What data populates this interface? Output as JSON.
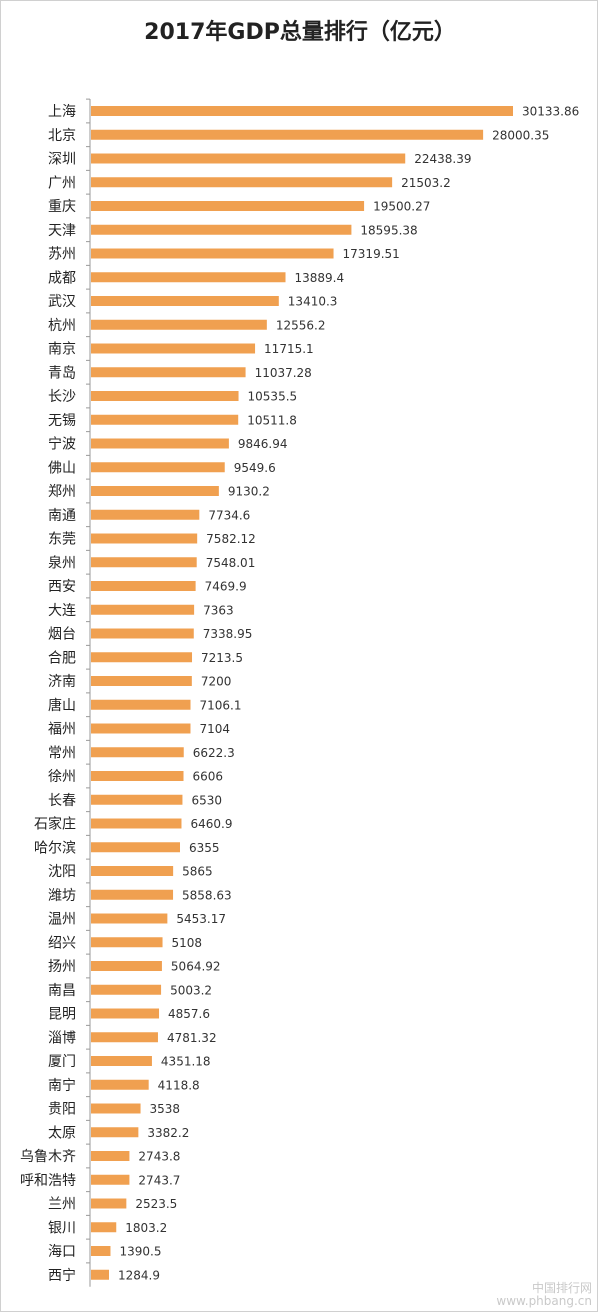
{
  "chart_data": {
    "type": "bar",
    "orientation": "horizontal",
    "title": "2017年GDP总量排行（亿元）",
    "categories": [
      "上海",
      "北京",
      "深圳",
      "广州",
      "重庆",
      "天津",
      "苏州",
      "成都",
      "武汉",
      "杭州",
      "南京",
      "青岛",
      "长沙",
      "无锡",
      "宁波",
      "佛山",
      "郑州",
      "南通",
      "东莞",
      "泉州",
      "西安",
      "大连",
      "烟台",
      "合肥",
      "济南",
      "唐山",
      "福州",
      "常州",
      "徐州",
      "长春",
      "石家庄",
      "哈尔滨",
      "沈阳",
      "潍坊",
      "温州",
      "绍兴",
      "扬州",
      "南昌",
      "昆明",
      "淄博",
      "厦门",
      "南宁",
      "贵阳",
      "太原",
      "乌鲁木齐",
      "呼和浩特",
      "兰州",
      "银川",
      "海口",
      "西宁"
    ],
    "values": [
      30133.86,
      28000.35,
      22438.39,
      21503.2,
      19500.27,
      18595.38,
      17319.51,
      13889.4,
      13410.3,
      12556.2,
      11715.1,
      11037.28,
      10535.5,
      10511.8,
      9846.94,
      9549.6,
      9130.2,
      7734.6,
      7582.12,
      7548.01,
      7469.9,
      7363,
      7338.95,
      7213.5,
      7200,
      7106.1,
      7104,
      6622.3,
      6606,
      6530,
      6460.9,
      6355,
      5865,
      5858.63,
      5453.17,
      5108,
      5064.92,
      5003.2,
      4857.6,
      4781.32,
      4351.18,
      4118.8,
      3538,
      3382.2,
      2743.8,
      2743.7,
      2523.5,
      1803.2,
      1390.5,
      1284.9
    ],
    "labels": [
      "30133.86",
      "28000.35",
      "22438.39",
      "21503.2",
      "19500.27",
      "18595.38",
      "17319.51",
      "13889.4",
      "13410.3",
      "12556.2",
      "11715.1",
      "11037.28",
      "10535.5",
      "10511.8",
      "9846.94",
      "9549.6",
      "9130.2",
      "7734.6",
      "7582.12",
      "7548.01",
      "7469.9",
      "7363",
      "7338.95",
      "7213.5",
      "7200",
      "7106.1",
      "7104",
      "6622.3",
      "6606",
      "6530",
      "6460.9",
      "6355",
      "5865",
      "5858.63",
      "5453.17",
      "5108",
      "5064.92",
      "5003.2",
      "4857.6",
      "4781.32",
      "4351.18",
      "4118.8",
      "3538",
      "3382.2",
      "2743.8",
      "2743.7",
      "2523.5",
      "1803.2",
      "1390.5",
      "1284.9"
    ],
    "bar_color": "#F0A050",
    "xlim": [
      0,
      30133.86
    ],
    "grid": false,
    "legend": "none"
  },
  "watermark": {
    "line1": "中国排行网",
    "line2": "www.phbang.cn"
  }
}
